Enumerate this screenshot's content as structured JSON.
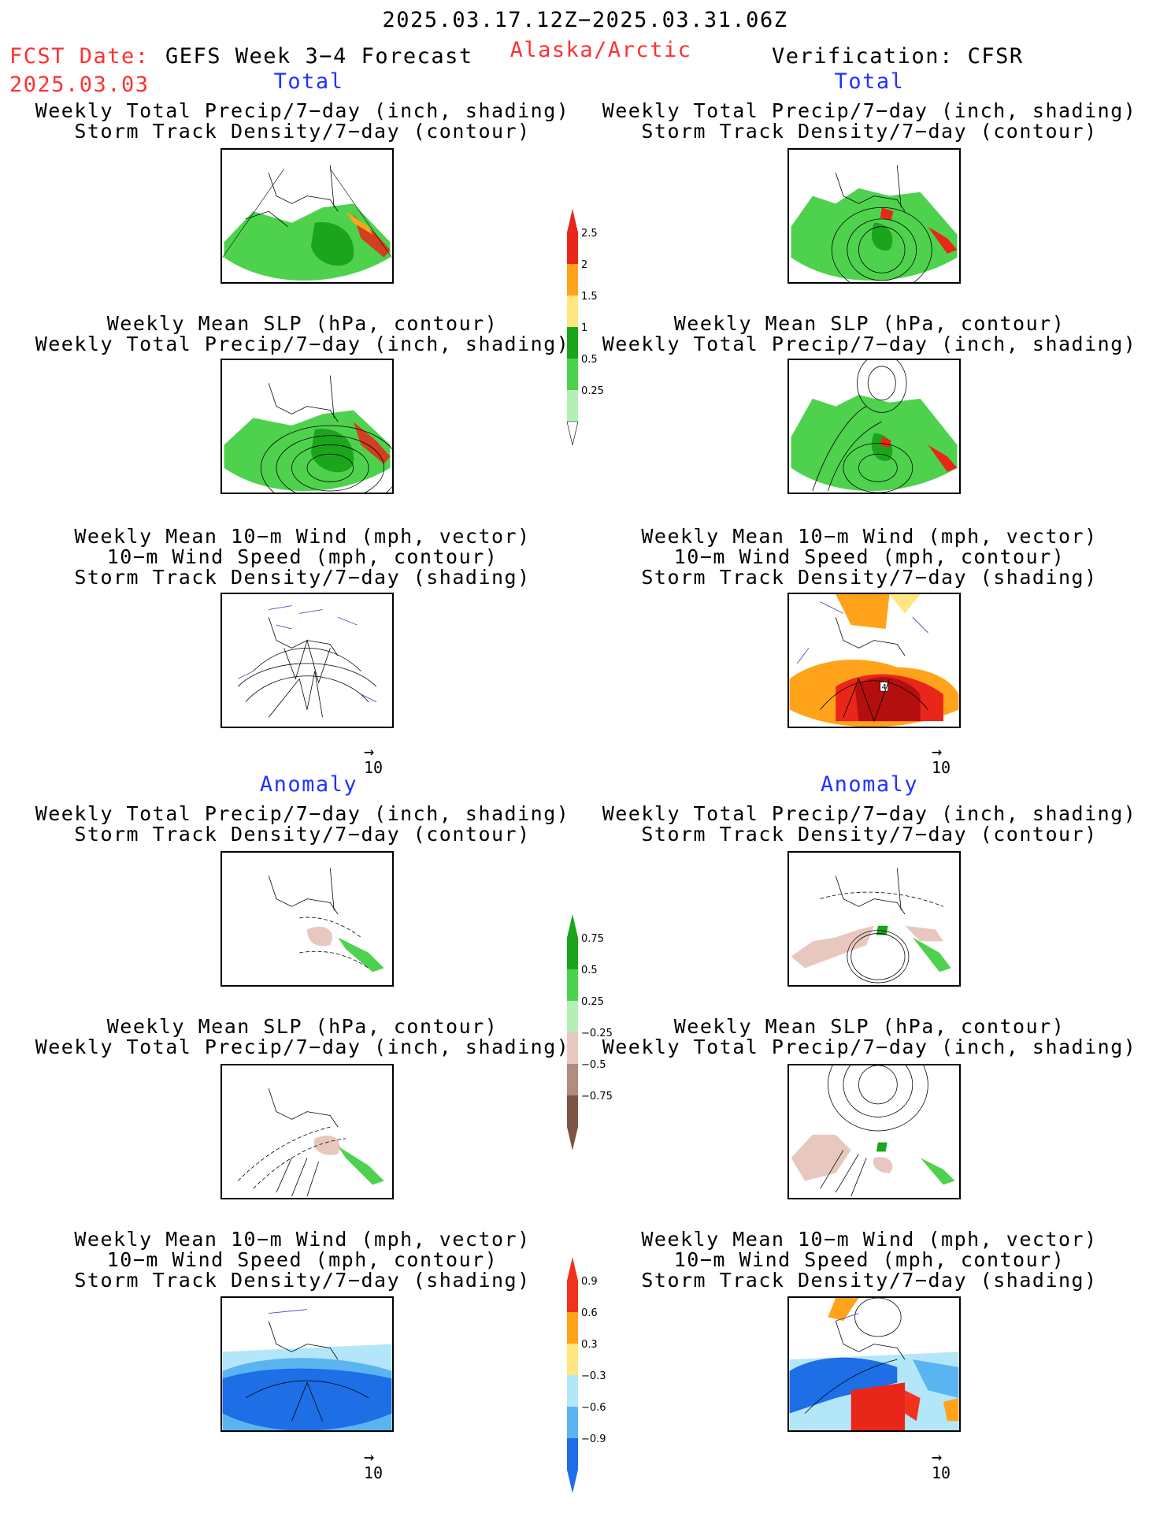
{
  "header": {
    "date_range": "2025.03.17.12Z−2025.03.31.06Z",
    "fcst_label": "FCST Date:",
    "fcst_date": "2025.03.03",
    "model_title": "GEFS Week 3−4 Forecast",
    "region": "Alaska/Arctic",
    "verification": "Verification: CFSR"
  },
  "sections": {
    "total": "Total",
    "anomaly": "Anomaly"
  },
  "panel_titles": {
    "precip_storm": [
      "Weekly Total Precip/7−day (inch, shading)",
      "Storm Track Density/7−day (contour)"
    ],
    "slp_precip": [
      "Weekly Mean SLP (hPa, contour)",
      "Weekly Total Precip/7−day (inch, shading)"
    ],
    "wind": [
      "Weekly Mean 10−m Wind (mph, vector)",
      "10−m Wind Speed (mph, contour)",
      "Storm Track Density/7−day (shading)"
    ]
  },
  "vector_reference": "10",
  "wind_label_value": "4",
  "colorbars": {
    "precip_total": {
      "labels": [
        "2.5",
        "2",
        "1.5",
        "1",
        "0.5",
        "0.25"
      ],
      "colors": [
        "#e8261a",
        "#ffa31a",
        "#ffe680",
        "#1aa51a",
        "#4ed24e",
        "#b4f0b4"
      ]
    },
    "precip_anomaly": {
      "labels": [
        "0.75",
        "0.5",
        "0.25",
        "−0.25",
        "−0.5",
        "−0.75"
      ],
      "colors": [
        "#1aa51a",
        "#4ed24e",
        "#b4f0b4",
        "#e8c8be",
        "#b48c7e",
        "#7e5442"
      ]
    },
    "storm_anomaly": {
      "labels": [
        "0.9",
        "0.6",
        "0.3",
        "−0.3",
        "−0.6",
        "−0.9"
      ],
      "colors": [
        "#f0321e",
        "#ffa31a",
        "#ffe680",
        "#b4e6fa",
        "#5ab4f0",
        "#1e6ee6"
      ]
    }
  }
}
